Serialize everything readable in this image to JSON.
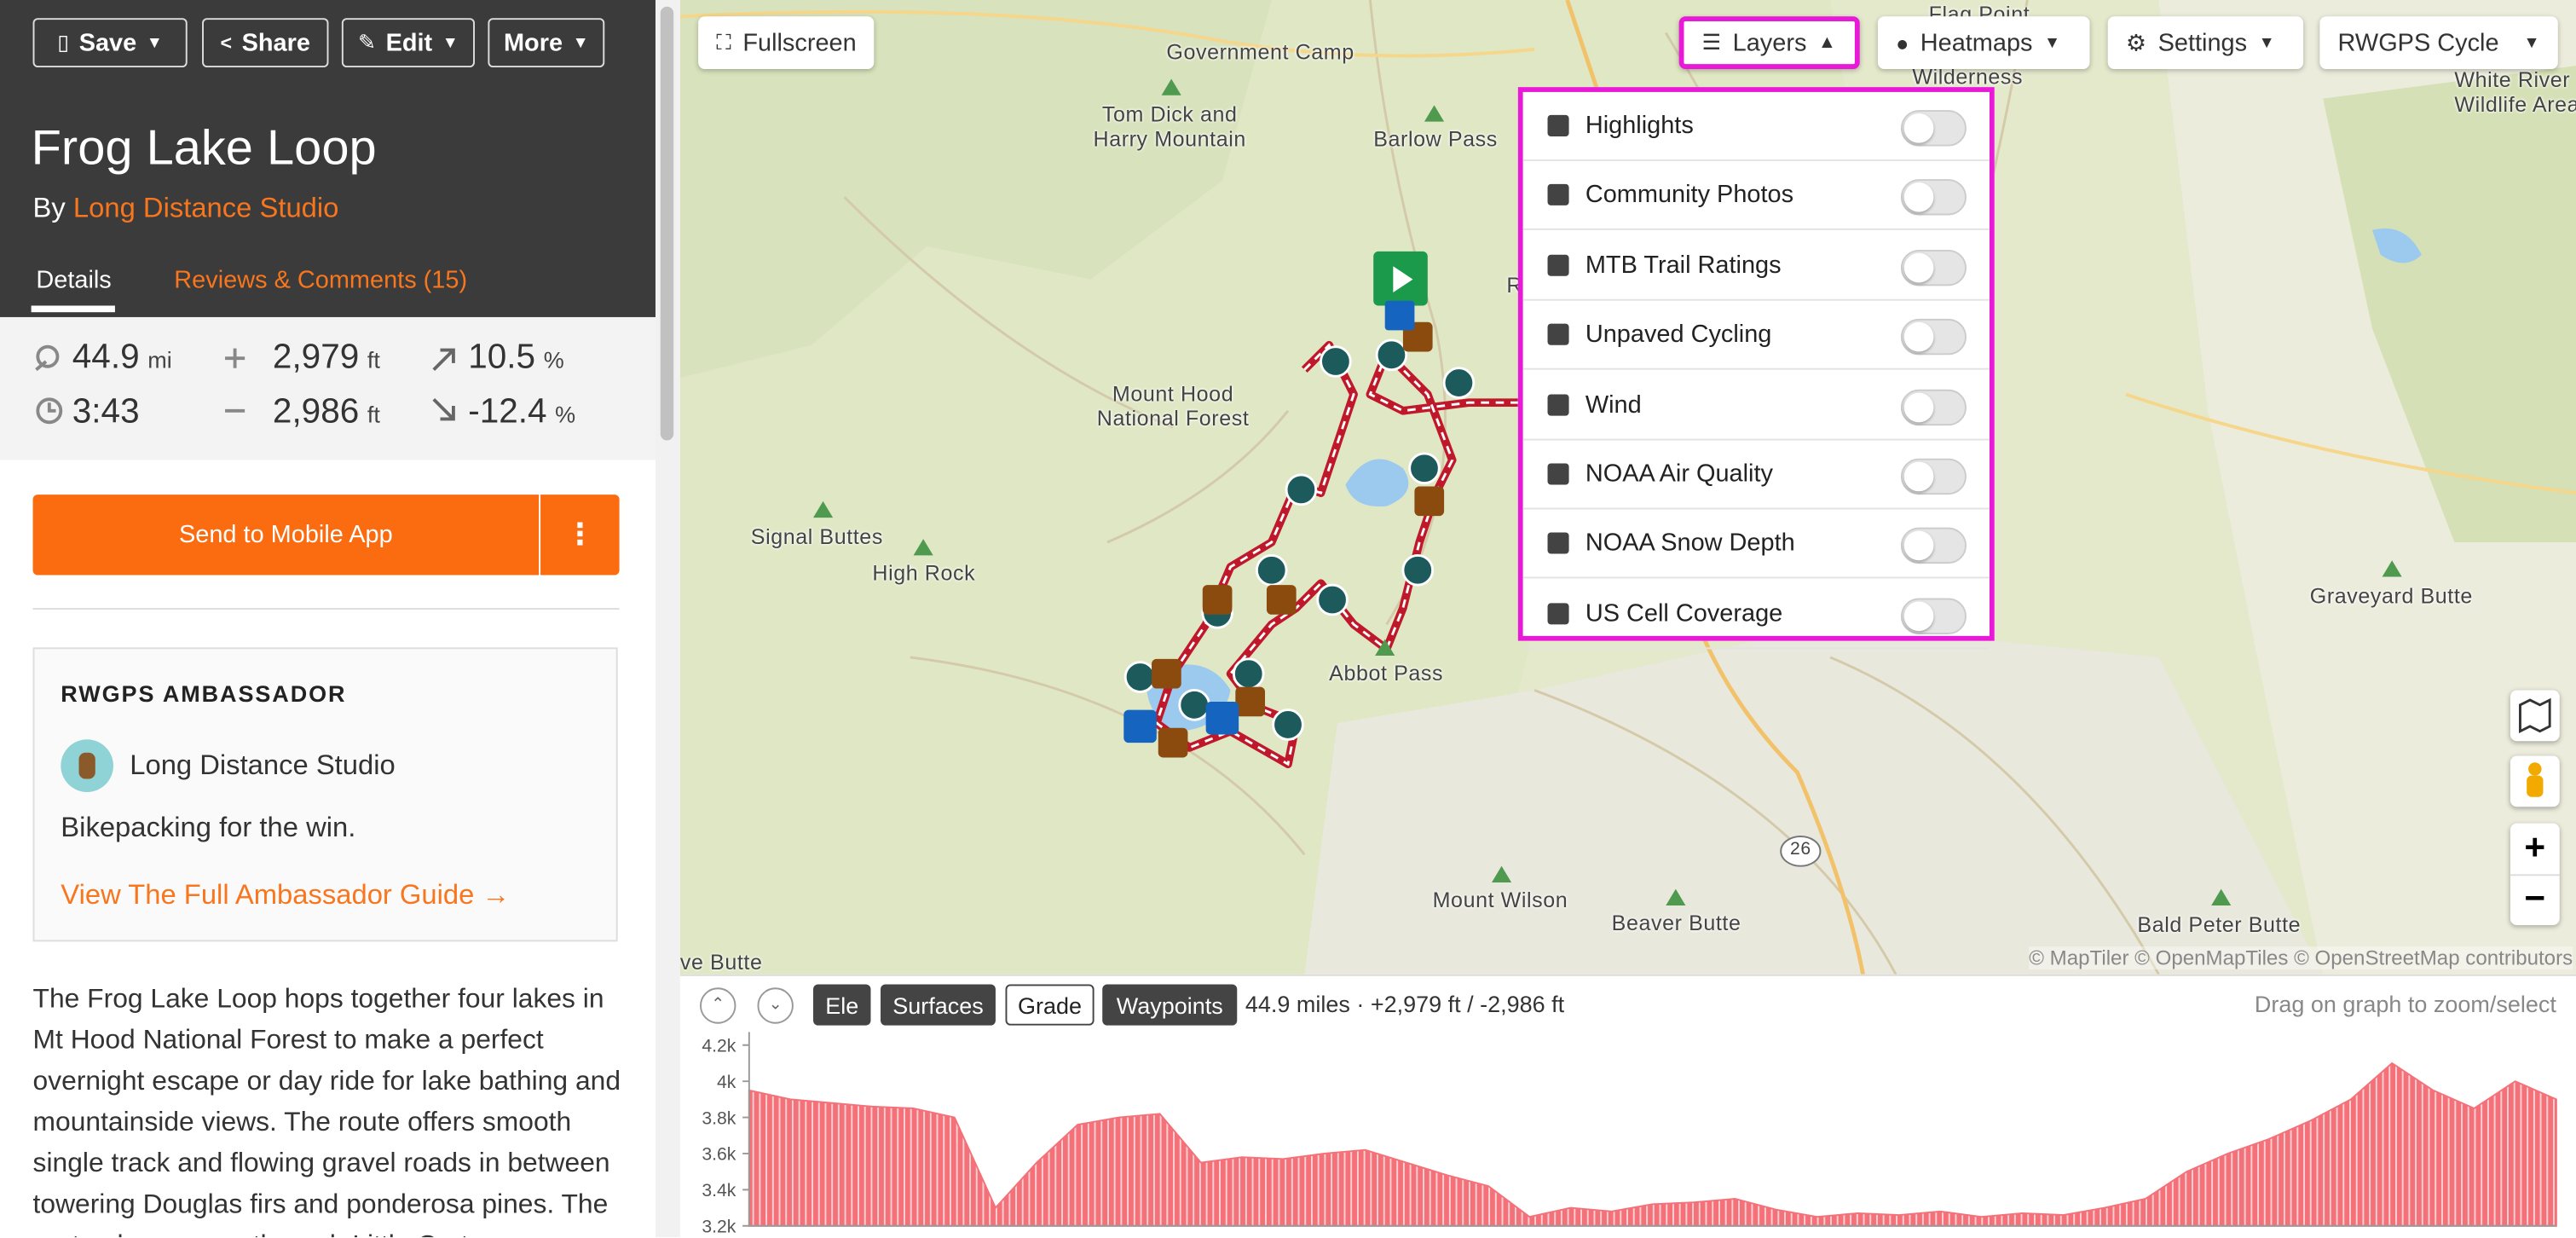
{
  "toolbar": {
    "buttons": [
      "Save",
      "Share",
      "Edit",
      "More"
    ]
  },
  "route": {
    "title": "Frog Lake Loop",
    "by": "By",
    "author": "Long Distance Studio",
    "tabs": [
      "Details",
      "Reviews & Comments (15)"
    ]
  },
  "stats": [
    {
      "value": "44.9",
      "unit": "mi"
    },
    {
      "value": "2,979",
      "unit": "ft"
    },
    {
      "value": "10.5",
      "unit": "%"
    },
    {
      "value": "3:43"
    },
    {
      "value": "2,986",
      "unit": "ft"
    },
    {
      "value": "-12.4",
      "unit": "%"
    }
  ],
  "send_button": "Send to Mobile App",
  "ambassador": {
    "heading": "RWGPS AMBASSADOR",
    "name": "Long Distance Studio",
    "tagline": "Bikepacking for the win.",
    "link": "View The Full Ambassador Guide →"
  },
  "description": "The Frog Lake Loop hops together four lakes in Mt Hood National Forest to make a perfect overnight escape or day ride for lake bathing and mountainside views. The route offers smooth single track and flowing gravel roads in between towering Douglas firs and ponderosa pines. The route also passes through Little Crater",
  "map": {
    "fullscreen": "Fullscreen",
    "menu": [
      "Layers",
      "Heatmaps",
      "Settings",
      "RWGPS Cycle"
    ],
    "layers": [
      "Highlights",
      "Community Photos",
      "MTB Trail Ratings",
      "Unpaved Cycling",
      "Wind",
      "NOAA Air Quality",
      "NOAA Snow Depth",
      "US Cell Coverage"
    ],
    "labels": [
      "Government Camp",
      "Tom Dick and Harry Mountain",
      "Barlow Pass",
      "Mount Hood National Forest",
      "Signal Buttes",
      "High Rock",
      "Abbot Pass",
      "Mount Wilson",
      "Beaver Butte",
      "Bald Peter Butte",
      "Graveyard Butte",
      "White River Wildlife Area",
      "Wilderness",
      "Flag Point",
      "26",
      "ve Butte",
      "R"
    ],
    "attribution": "© MapTiler © OpenMapTiles © OpenStreetMap contributors"
  },
  "elevation": {
    "tabs": [
      "Ele",
      "Surfaces",
      "Grade",
      "Waypoints"
    ],
    "summary": "44.9 miles · +2,979 ft / -2,986 ft",
    "hint": "Drag on graph to zoom/select",
    "ylim": [
      3200,
      4200
    ],
    "yticks": [
      {
        "value": 3200,
        "label": "3.2k"
      },
      {
        "value": 3400,
        "label": "3.4k"
      },
      {
        "value": 3600,
        "label": "3.6k"
      },
      {
        "value": 3800,
        "label": "3.8k"
      },
      {
        "value": 4000,
        "label": "4k"
      },
      {
        "value": 4200,
        "label": "4.2k"
      }
    ],
    "values": [
      3950,
      3900,
      3880,
      3860,
      3850,
      3800,
      3300,
      3550,
      3760,
      3800,
      3820,
      3550,
      3580,
      3570,
      3600,
      3620,
      3550,
      3480,
      3420,
      3250,
      3300,
      3280,
      3320,
      3330,
      3350,
      3290,
      3250,
      3270,
      3260,
      3280,
      3250,
      3270,
      3260,
      3300,
      3350,
      3500,
      3600,
      3680,
      3780,
      3900,
      4100,
      3950,
      3850,
      4000,
      3900
    ],
    "color": "#f47179"
  }
}
